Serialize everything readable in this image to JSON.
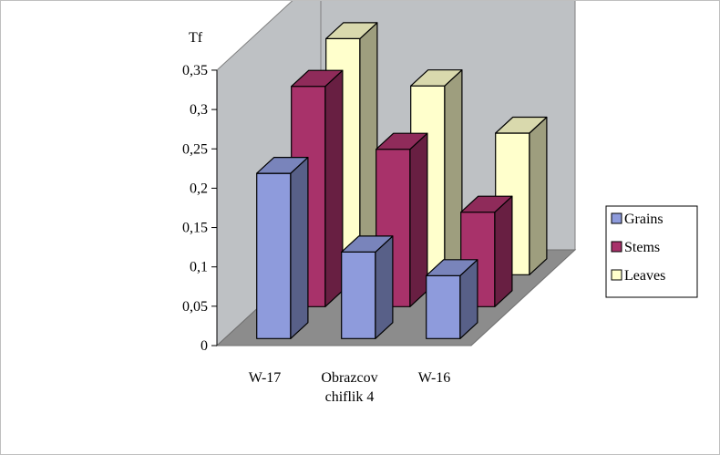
{
  "chart_data": {
    "type": "bar",
    "subtype": "3d-clustered-depth",
    "ylabel": "Tf",
    "ylim": [
      0,
      0.35
    ],
    "yticks": [
      "0",
      "0,05",
      "0,1",
      "0,15",
      "0,2",
      "0,25",
      "0,3",
      "0,35"
    ],
    "categories": [
      "W-17",
      "Obrazcov chiflik 4",
      "W-16"
    ],
    "series": [
      {
        "name": "Grains",
        "values": [
          0.21,
          0.11,
          0.08
        ]
      },
      {
        "name": "Stems",
        "values": [
          0.28,
          0.2,
          0.12
        ]
      },
      {
        "name": "Leaves",
        "values": [
          0.3,
          0.24,
          0.18
        ]
      }
    ],
    "colors": {
      "Grains": "#8e9bdc",
      "Stems": "#a8326a",
      "Leaves": "#ffffcc",
      "back_wall": "#bec1c4",
      "floor": "#8c8c8c"
    },
    "legend": "right",
    "grid": false
  }
}
